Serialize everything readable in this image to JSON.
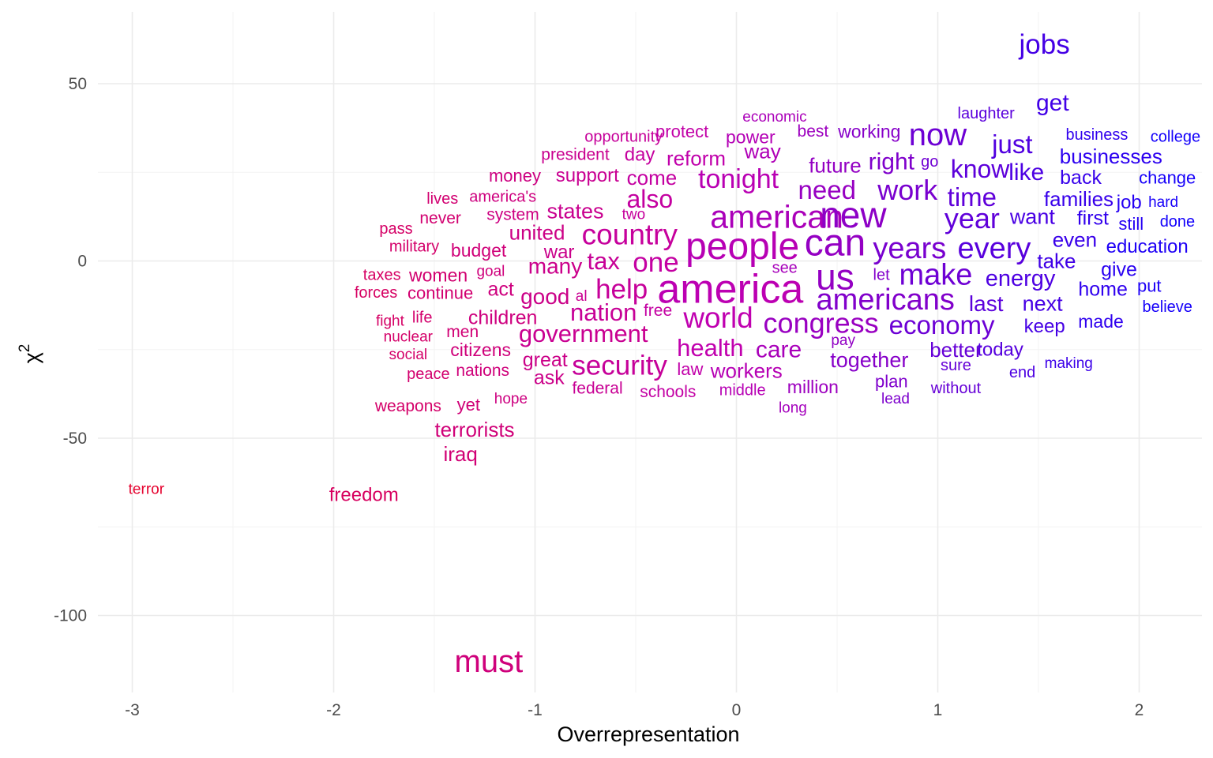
{
  "chart_data": {
    "type": "scatter",
    "subtype": "word-scatter",
    "title": "",
    "xlabel": "Overrepresentation",
    "ylabel": "χ",
    "ylabel_superscript": "2",
    "xlim": [
      -3.5,
      2.3
    ],
    "ylim": [
      -121,
      70
    ],
    "xticks": [
      -3,
      -2,
      -1,
      0,
      1,
      2
    ],
    "xtick_labels": [
      "-3",
      "-2",
      "-1",
      "0",
      "1",
      "2"
    ],
    "yticks": [
      50,
      0,
      -50,
      -100
    ],
    "ytick_labels": [
      "50",
      "0",
      "-50",
      "-100"
    ],
    "grid": true,
    "legend": "none",
    "color_scale": {
      "low": "#e6002a",
      "mid": "#c000b0",
      "high": "#0a00ff",
      "range": [
        -3,
        2.3
      ]
    },
    "points": [
      {
        "label": "jobs",
        "x": 1.53,
        "y": 61.0,
        "size": 35
      },
      {
        "label": "get",
        "x": 1.57,
        "y": 44.5,
        "size": 30
      },
      {
        "label": "laughter",
        "x": 1.24,
        "y": 41.5,
        "size": 20
      },
      {
        "label": "economic",
        "x": 0.19,
        "y": 40.5,
        "size": 19
      },
      {
        "label": "now",
        "x": 1.0,
        "y": 35.5,
        "size": 40
      },
      {
        "label": "opportunity",
        "x": -0.56,
        "y": 35.0,
        "size": 20
      },
      {
        "label": "protect",
        "x": -0.27,
        "y": 36.5,
        "size": 22
      },
      {
        "label": "power",
        "x": 0.07,
        "y": 35.0,
        "size": 23
      },
      {
        "label": "best",
        "x": 0.38,
        "y": 36.5,
        "size": 21
      },
      {
        "label": "working",
        "x": 0.66,
        "y": 36.5,
        "size": 23
      },
      {
        "label": "business",
        "x": 1.79,
        "y": 35.5,
        "size": 20
      },
      {
        "label": "college",
        "x": 2.18,
        "y": 35.0,
        "size": 20
      },
      {
        "label": "just",
        "x": 1.37,
        "y": 33.0,
        "size": 33
      },
      {
        "label": "president",
        "x": -0.8,
        "y": 30.0,
        "size": 21
      },
      {
        "label": "day",
        "x": -0.48,
        "y": 30.0,
        "size": 24
      },
      {
        "label": "reform",
        "x": -0.2,
        "y": 29.0,
        "size": 26
      },
      {
        "label": "way",
        "x": 0.13,
        "y": 31.0,
        "size": 26
      },
      {
        "label": "businesses",
        "x": 1.86,
        "y": 29.5,
        "size": 26
      },
      {
        "label": "future",
        "x": 0.49,
        "y": 27.0,
        "size": 26
      },
      {
        "label": "right",
        "x": 0.77,
        "y": 28.0,
        "size": 30
      },
      {
        "label": "go",
        "x": 0.96,
        "y": 28.0,
        "size": 20
      },
      {
        "label": "know",
        "x": 1.21,
        "y": 26.0,
        "size": 32
      },
      {
        "label": "like",
        "x": 1.44,
        "y": 25.0,
        "size": 30
      },
      {
        "label": "money",
        "x": -1.1,
        "y": 24.0,
        "size": 22
      },
      {
        "label": "support",
        "x": -0.74,
        "y": 24.0,
        "size": 24
      },
      {
        "label": "come",
        "x": -0.42,
        "y": 23.5,
        "size": 26
      },
      {
        "label": "tonight",
        "x": 0.01,
        "y": 23.0,
        "size": 34
      },
      {
        "label": "back",
        "x": 1.71,
        "y": 23.5,
        "size": 25
      },
      {
        "label": "change",
        "x": 2.14,
        "y": 23.5,
        "size": 22
      },
      {
        "label": "need",
        "x": 0.45,
        "y": 20.0,
        "size": 33
      },
      {
        "label": "work",
        "x": 0.85,
        "y": 20.0,
        "size": 36
      },
      {
        "label": "time",
        "x": 1.17,
        "y": 18.0,
        "size": 33
      },
      {
        "label": "lives",
        "x": -1.46,
        "y": 17.5,
        "size": 20
      },
      {
        "label": "america's",
        "x": -1.16,
        "y": 18.0,
        "size": 20
      },
      {
        "label": "also",
        "x": -0.43,
        "y": 17.5,
        "size": 32
      },
      {
        "label": "families",
        "x": 1.7,
        "y": 17.5,
        "size": 26
      },
      {
        "label": "job",
        "x": 1.95,
        "y": 16.5,
        "size": 24
      },
      {
        "label": "hard",
        "x": 2.12,
        "y": 16.5,
        "size": 19
      },
      {
        "label": "states",
        "x": -0.8,
        "y": 14.0,
        "size": 27
      },
      {
        "label": "two",
        "x": -0.51,
        "y": 13.0,
        "size": 19
      },
      {
        "label": "system",
        "x": -1.11,
        "y": 13.0,
        "size": 21
      },
      {
        "label": "never",
        "x": -1.47,
        "y": 12.0,
        "size": 21
      },
      {
        "label": "american",
        "x": 0.2,
        "y": 12.5,
        "size": 41
      },
      {
        "label": "new",
        "x": 0.58,
        "y": 13.0,
        "size": 46
      },
      {
        "label": "year",
        "x": 1.17,
        "y": 12.0,
        "size": 36
      },
      {
        "label": "want",
        "x": 1.47,
        "y": 12.5,
        "size": 27
      },
      {
        "label": "first",
        "x": 1.77,
        "y": 12.0,
        "size": 25
      },
      {
        "label": "still",
        "x": 1.96,
        "y": 10.5,
        "size": 22
      },
      {
        "label": "done",
        "x": 2.19,
        "y": 11.0,
        "size": 20
      },
      {
        "label": "pass",
        "x": -1.69,
        "y": 9.0,
        "size": 20
      },
      {
        "label": "united",
        "x": -0.99,
        "y": 8.0,
        "size": 26
      },
      {
        "label": "country",
        "x": -0.53,
        "y": 7.5,
        "size": 37
      },
      {
        "label": "people",
        "x": 0.03,
        "y": 4.0,
        "size": 48
      },
      {
        "label": "can",
        "x": 0.49,
        "y": 5.0,
        "size": 48
      },
      {
        "label": "even",
        "x": 1.68,
        "y": 6.0,
        "size": 26
      },
      {
        "label": "military",
        "x": -1.6,
        "y": 4.0,
        "size": 20
      },
      {
        "label": "budget",
        "x": -1.28,
        "y": 3.0,
        "size": 23
      },
      {
        "label": "war",
        "x": -0.88,
        "y": 2.5,
        "size": 24
      },
      {
        "label": "years",
        "x": 0.86,
        "y": 3.5,
        "size": 38
      },
      {
        "label": "every",
        "x": 1.28,
        "y": 3.5,
        "size": 38
      },
      {
        "label": "education",
        "x": 2.04,
        "y": 4.0,
        "size": 24
      },
      {
        "label": "tax",
        "x": -0.66,
        "y": 0.0,
        "size": 31
      },
      {
        "label": "one",
        "x": -0.4,
        "y": -0.5,
        "size": 35
      },
      {
        "label": "take",
        "x": 1.59,
        "y": 0.0,
        "size": 26
      },
      {
        "label": "many",
        "x": -0.9,
        "y": -1.5,
        "size": 28
      },
      {
        "label": "see",
        "x": 0.24,
        "y": -2.0,
        "size": 20
      },
      {
        "label": "give",
        "x": 1.9,
        "y": -2.5,
        "size": 25
      },
      {
        "label": "goal",
        "x": -1.22,
        "y": -3.0,
        "size": 19
      },
      {
        "label": "taxes",
        "x": -1.76,
        "y": -4.0,
        "size": 20
      },
      {
        "label": "women",
        "x": -1.48,
        "y": -4.0,
        "size": 23
      },
      {
        "label": "us",
        "x": 0.49,
        "y": -4.5,
        "size": 46
      },
      {
        "label": "make",
        "x": 0.99,
        "y": -4.0,
        "size": 38
      },
      {
        "label": "let",
        "x": 0.72,
        "y": -4.0,
        "size": 20
      },
      {
        "label": "energy",
        "x": 1.41,
        "y": -5.0,
        "size": 29
      },
      {
        "label": "act",
        "x": -1.17,
        "y": -8.0,
        "size": 25
      },
      {
        "label": "help",
        "x": -0.57,
        "y": -8.0,
        "size": 35
      },
      {
        "label": "america",
        "x": -0.03,
        "y": -8.0,
        "size": 52
      },
      {
        "label": "put",
        "x": 2.05,
        "y": -7.0,
        "size": 22
      },
      {
        "label": "home",
        "x": 1.82,
        "y": -8.0,
        "size": 25
      },
      {
        "label": "forces",
        "x": -1.79,
        "y": -9.0,
        "size": 20
      },
      {
        "label": "continue",
        "x": -1.47,
        "y": -9.0,
        "size": 22
      },
      {
        "label": "good",
        "x": -0.95,
        "y": -10.0,
        "size": 28
      },
      {
        "label": "al",
        "x": -0.77,
        "y": -10.0,
        "size": 19
      },
      {
        "label": "americans",
        "x": 0.74,
        "y": -11.0,
        "size": 38
      },
      {
        "label": "last",
        "x": 1.24,
        "y": -12.0,
        "size": 28
      },
      {
        "label": "next",
        "x": 1.52,
        "y": -12.0,
        "size": 27
      },
      {
        "label": "believe",
        "x": 2.14,
        "y": -13.0,
        "size": 20
      },
      {
        "label": "nation",
        "x": -0.66,
        "y": -14.5,
        "size": 31
      },
      {
        "label": "free",
        "x": -0.39,
        "y": -14.0,
        "size": 21
      },
      {
        "label": "world",
        "x": -0.09,
        "y": -16.0,
        "size": 37
      },
      {
        "label": "congress",
        "x": 0.42,
        "y": -17.5,
        "size": 36
      },
      {
        "label": "economy",
        "x": 1.02,
        "y": -18.0,
        "size": 33
      },
      {
        "label": "life",
        "x": -1.56,
        "y": -16.0,
        "size": 20
      },
      {
        "label": "children",
        "x": -1.16,
        "y": -16.0,
        "size": 25
      },
      {
        "label": "fight",
        "x": -1.72,
        "y": -17.0,
        "size": 19
      },
      {
        "label": "made",
        "x": 1.81,
        "y": -17.0,
        "size": 23
      },
      {
        "label": "keep",
        "x": 1.53,
        "y": -18.5,
        "size": 24
      },
      {
        "label": "men",
        "x": -1.36,
        "y": -20.0,
        "size": 21
      },
      {
        "label": "government",
        "x": -0.76,
        "y": -20.5,
        "size": 31
      },
      {
        "label": "nuclear",
        "x": -1.63,
        "y": -21.5,
        "size": 19
      },
      {
        "label": "pay",
        "x": 0.53,
        "y": -22.5,
        "size": 19
      },
      {
        "label": "citizens",
        "x": -1.27,
        "y": -25.0,
        "size": 23
      },
      {
        "label": "health",
        "x": -0.13,
        "y": -24.5,
        "size": 31
      },
      {
        "label": "care",
        "x": 0.21,
        "y": -25.0,
        "size": 30
      },
      {
        "label": "better",
        "x": 1.09,
        "y": -25.0,
        "size": 26
      },
      {
        "label": "today",
        "x": 1.31,
        "y": -25.0,
        "size": 24
      },
      {
        "label": "social",
        "x": -1.63,
        "y": -26.5,
        "size": 19
      },
      {
        "label": "together",
        "x": 0.66,
        "y": -28.0,
        "size": 27
      },
      {
        "label": "great",
        "x": -0.95,
        "y": -28.0,
        "size": 25
      },
      {
        "label": "security",
        "x": -0.58,
        "y": -29.5,
        "size": 35
      },
      {
        "label": "sure",
        "x": 1.09,
        "y": -29.5,
        "size": 20
      },
      {
        "label": "making",
        "x": 1.65,
        "y": -29.0,
        "size": 19
      },
      {
        "label": "nations",
        "x": -1.26,
        "y": -31.0,
        "size": 21
      },
      {
        "label": "law",
        "x": -0.23,
        "y": -30.5,
        "size": 22
      },
      {
        "label": "workers",
        "x": 0.05,
        "y": -31.0,
        "size": 26
      },
      {
        "label": "peace",
        "x": -1.53,
        "y": -32.0,
        "size": 20
      },
      {
        "label": "end",
        "x": 1.42,
        "y": -31.5,
        "size": 20
      },
      {
        "label": "ask",
        "x": -0.93,
        "y": -33.0,
        "size": 25
      },
      {
        "label": "plan",
        "x": 0.77,
        "y": -34.0,
        "size": 22
      },
      {
        "label": "million",
        "x": 0.38,
        "y": -35.5,
        "size": 23
      },
      {
        "label": "federal",
        "x": -0.69,
        "y": -36.0,
        "size": 21
      },
      {
        "label": "without",
        "x": 1.09,
        "y": -36.0,
        "size": 20
      },
      {
        "label": "schools",
        "x": -0.34,
        "y": -37.0,
        "size": 21
      },
      {
        "label": "middle",
        "x": 0.03,
        "y": -36.5,
        "size": 20
      },
      {
        "label": "hope",
        "x": -1.12,
        "y": -39.0,
        "size": 19
      },
      {
        "label": "lead",
        "x": 0.79,
        "y": -39.0,
        "size": 19
      },
      {
        "label": "weapons",
        "x": -1.63,
        "y": -41.0,
        "size": 21
      },
      {
        "label": "yet",
        "x": -1.33,
        "y": -40.5,
        "size": 22
      },
      {
        "label": "long",
        "x": 0.28,
        "y": -41.5,
        "size": 19
      },
      {
        "label": "terrorists",
        "x": -1.3,
        "y": -47.5,
        "size": 26
      },
      {
        "label": "iraq",
        "x": -1.37,
        "y": -54.5,
        "size": 26
      },
      {
        "label": "terror",
        "x": -2.93,
        "y": -64.5,
        "size": 19
      },
      {
        "label": "freedom",
        "x": -1.85,
        "y": -66.0,
        "size": 24
      },
      {
        "label": "must",
        "x": -1.23,
        "y": -113.0,
        "size": 40
      }
    ]
  }
}
